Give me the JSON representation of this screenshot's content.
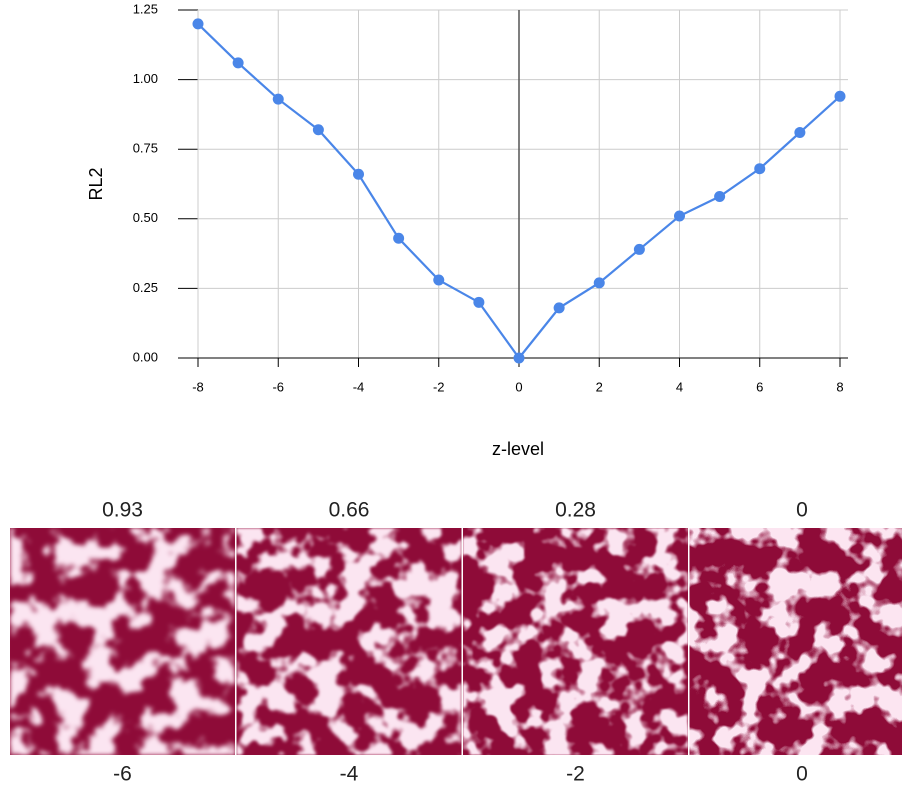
{
  "chart_data": {
    "type": "line",
    "x_label": "z-level",
    "y_label": "RL2",
    "x": [
      -8,
      -7,
      -6,
      -5,
      -4,
      -3,
      -2,
      -1,
      0,
      1,
      2,
      3,
      4,
      5,
      6,
      7,
      8
    ],
    "series": [
      {
        "name": "RL2",
        "color": "#4a86e8",
        "values": [
          1.2,
          1.06,
          0.93,
          0.82,
          0.66,
          0.43,
          0.28,
          0.2,
          0,
          0.18,
          0.27,
          0.39,
          0.51,
          0.58,
          0.68,
          0.81,
          0.94
        ]
      }
    ],
    "xlim": [
      -8,
      8
    ],
    "ylim": [
      0,
      1.25
    ],
    "xticks": [
      -8,
      -6,
      -4,
      -2,
      0,
      2,
      4,
      6,
      8
    ],
    "yticks": [
      {
        "value": 0,
        "label": "0.00"
      },
      {
        "value": 0.25,
        "label": "0.25"
      },
      {
        "value": 0.5,
        "label": "0.50"
      },
      {
        "value": 0.75,
        "label": "0.75"
      },
      {
        "value": 1,
        "label": "1.00"
      },
      {
        "value": 1.25,
        "label": "1.25"
      }
    ],
    "grid": true
  },
  "panels": [
    {
      "top_label": "0.93",
      "bottom_label": "-6"
    },
    {
      "top_label": "0.66",
      "bottom_label": "-4"
    },
    {
      "top_label": "0.28",
      "bottom_label": "-2"
    },
    {
      "top_label": "0",
      "bottom_label": "0"
    }
  ]
}
